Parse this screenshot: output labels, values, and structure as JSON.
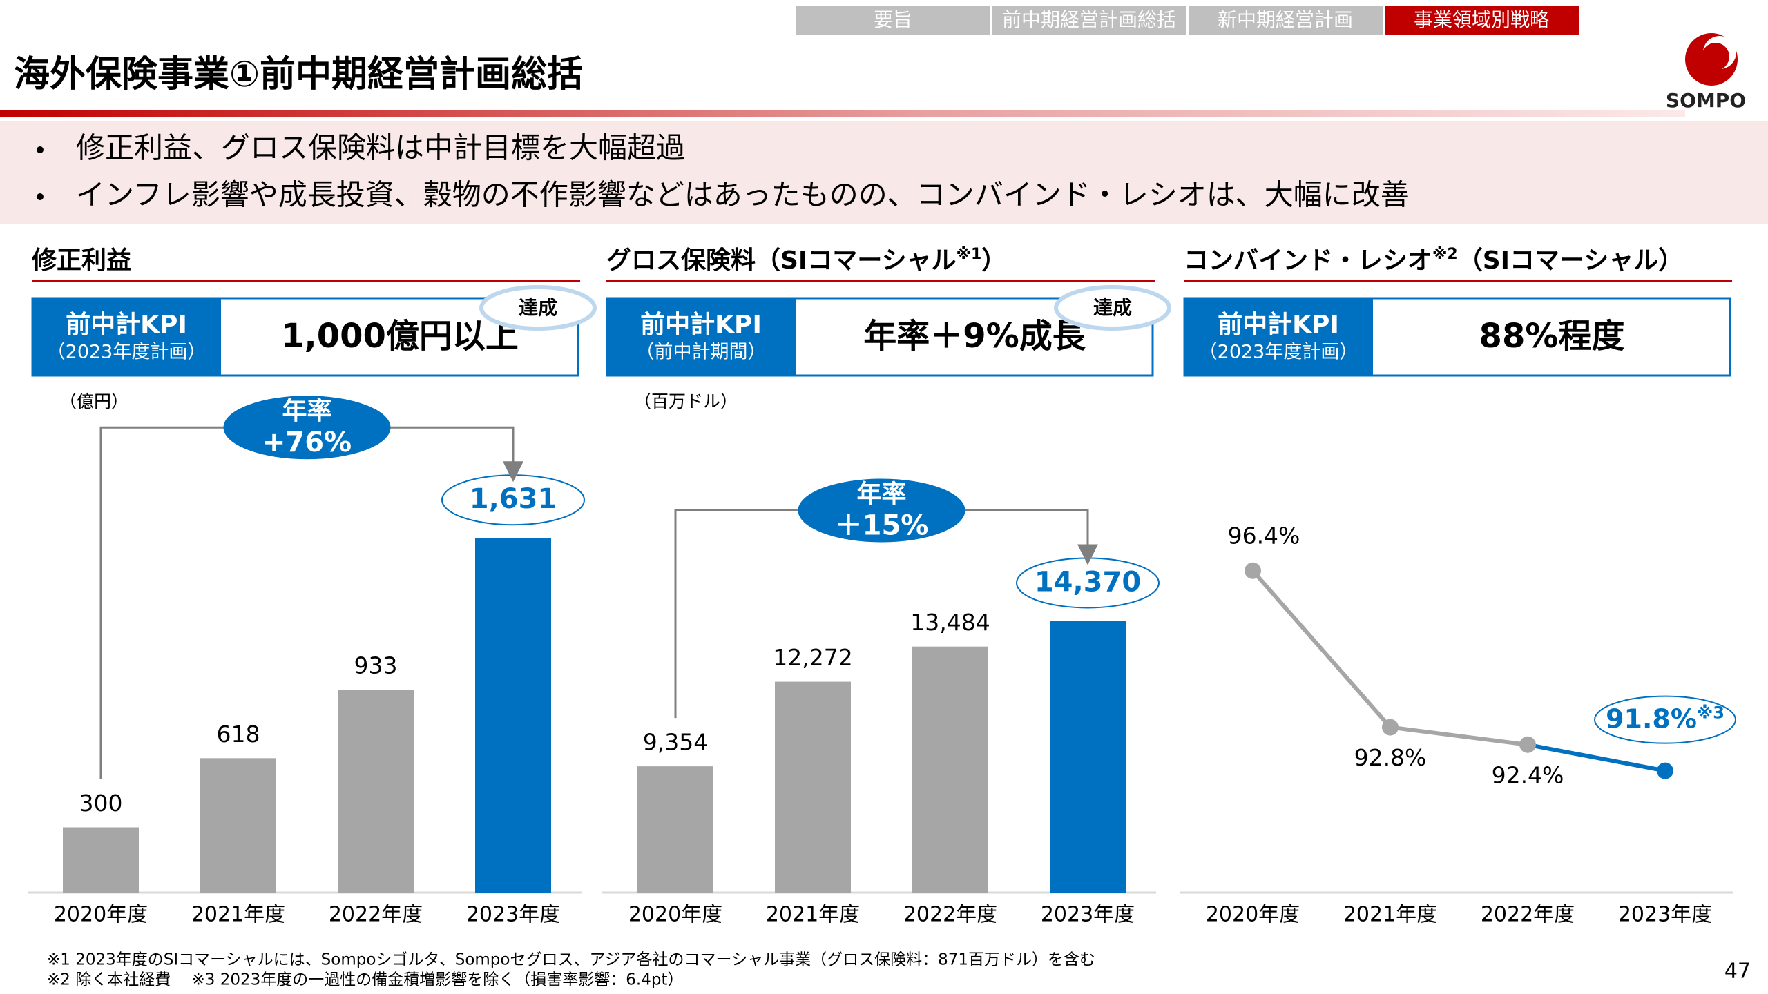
{
  "header": {
    "tabs": [
      "要旨",
      "前中期経営計画総括",
      "新中期経営計画",
      "事業領域別戦略"
    ],
    "title": "海外保険事業①前中期経営計画総括",
    "logo": "SOMPO"
  },
  "bullets": [
    "修正利益、グロス保険料は中計目標を大幅超過",
    "インフレ影響や成長投資、穀物の不作影響などはあったものの、コンバインド・レシオは、大幅に改善"
  ],
  "chart_data": [
    {
      "type": "bar",
      "title": "修正利益",
      "kpi_label": "前中計KPI",
      "kpi_sublabel": "（2023年度計画）",
      "kpi_value": "1,000億円以上",
      "badge": "達成",
      "unit": "（億円）",
      "growth_label": "年率",
      "growth_value": "+76%",
      "categories": [
        "2020年度",
        "2021年度",
        "2022年度",
        "2023年度"
      ],
      "values": [
        300,
        618,
        933,
        1631
      ],
      "value_labels": [
        "300",
        "618",
        "933",
        "1,631"
      ],
      "colors": [
        "#a6a6a6",
        "#a6a6a6",
        "#a6a6a6",
        "#0070c0"
      ],
      "ylim": [
        0,
        2000
      ]
    },
    {
      "type": "bar",
      "title": "グロス保険料（SIコマーシャル",
      "title_note": "※1",
      "title_suffix": "）",
      "kpi_label": "前中計KPI",
      "kpi_sublabel": "（前中計期間）",
      "kpi_value": "年率＋9%成長",
      "badge": "達成",
      "unit": "（百万ドル）",
      "growth_label": "年率",
      "growth_value": "＋15%",
      "categories": [
        "2020年度",
        "2021年度",
        "2022年度",
        "2023年度"
      ],
      "values": [
        9354,
        12272,
        13484,
        14370
      ],
      "value_labels": [
        "9,354",
        "12,272",
        "13,484",
        "14,370"
      ],
      "colors": [
        "#a6a6a6",
        "#a6a6a6",
        "#a6a6a6",
        "#0070c0"
      ],
      "ylim": [
        5000,
        20000
      ]
    },
    {
      "type": "line",
      "title": "コンバインド・レシオ",
      "title_note": "※2",
      "title_suffix": "（SIコマーシャル）",
      "kpi_label": "前中計KPI",
      "kpi_sublabel": "（2023年度計画）",
      "kpi_value": "88%程度",
      "categories": [
        "2020年度",
        "2021年度",
        "2022年度",
        "2023年度"
      ],
      "values": [
        96.4,
        92.8,
        92.4,
        91.8
      ],
      "value_labels": [
        "96.4%",
        "92.8%",
        "92.4%",
        "91.8%"
      ],
      "value_note": "※3",
      "colors": [
        "#a6a6a6",
        "#a6a6a6",
        "#a6a6a6",
        "#0070c0"
      ],
      "ylim": [
        89,
        99
      ]
    }
  ],
  "footnotes": [
    "※1 2023年度のSIコマーシャルには、Sompoシゴルタ、Sompoセグロス、アジア各社のコマーシャル事業（グロス保険料：871百万ドル）を含む",
    "※2 除く本社経費　 ※3 2023年度の一過性の備金積増影響を除く（損害率影響：6.4pt）"
  ],
  "page_number": "47"
}
